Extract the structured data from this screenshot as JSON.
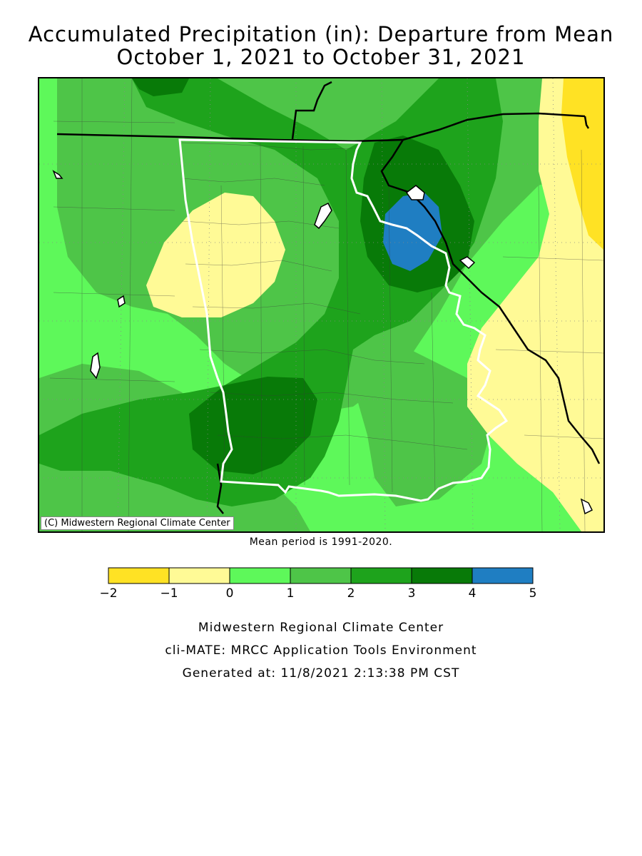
{
  "title_line1": "Accumulated Precipitation (in): Departure from Mean",
  "title_line2": "October 1, 2021 to October 31, 2021",
  "copyright": "(C) Midwestern Regional Climate Center",
  "mean_note": "Mean period is 1991-2020.",
  "legend": {
    "ticks": [
      "-2",
      "-1",
      "0",
      "1",
      "2",
      "3",
      "4",
      "5"
    ],
    "colors": [
      "#ffe224",
      "#fffa96",
      "#5ef85a",
      "#4ec548",
      "#1ea31c",
      "#087a08",
      "#1f7ec2"
    ]
  },
  "footer": {
    "line1": "Midwestern Regional Climate Center",
    "line2": "cli-MATE: MRCC Application Tools Environment",
    "line3": "Generated at: 11/8/2021 2:13:38 PM CST"
  },
  "map": {
    "region": "Arkansas",
    "color_dark_yellow": "#ffe224",
    "color_light_yellow": "#fffa96",
    "color_light_green": "#5ef85a",
    "color_mid_green": "#4ec548",
    "color_green": "#1ea31c",
    "color_dark_green": "#087a08",
    "color_blue": "#1f7ec2"
  }
}
